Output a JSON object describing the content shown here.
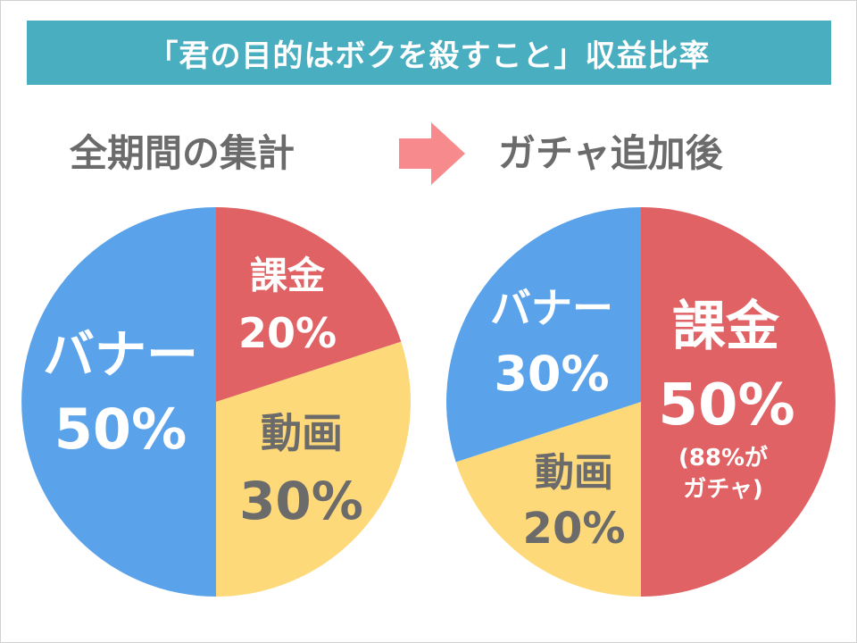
{
  "title": "「君の目的はボクを殺すこと」収益比率",
  "colors": {
    "title_bg": "#4aaec1",
    "banner": "#5aa3ea",
    "charge": "#e06264",
    "video": "#fed97a",
    "arrow": "#f78a8c",
    "subtitle_text": "#6b6b6b"
  },
  "chart_data": [
    {
      "type": "pie",
      "title": "全期間の集計",
      "slices": [
        {
          "label": "課金",
          "value": 20,
          "value_label": "20%"
        },
        {
          "label": "動画",
          "value": 30,
          "value_label": "30%"
        },
        {
          "label": "バナー",
          "value": 50,
          "value_label": "50%"
        }
      ]
    },
    {
      "type": "pie",
      "title": "ガチャ追加後",
      "slices": [
        {
          "label": "課金",
          "value": 50,
          "value_label": "50%",
          "note_line1": "(88%が",
          "note_line2": "ガチャ)"
        },
        {
          "label": "動画",
          "value": 20,
          "value_label": "20%"
        },
        {
          "label": "バナー",
          "value": 30,
          "value_label": "30%"
        }
      ]
    }
  ]
}
